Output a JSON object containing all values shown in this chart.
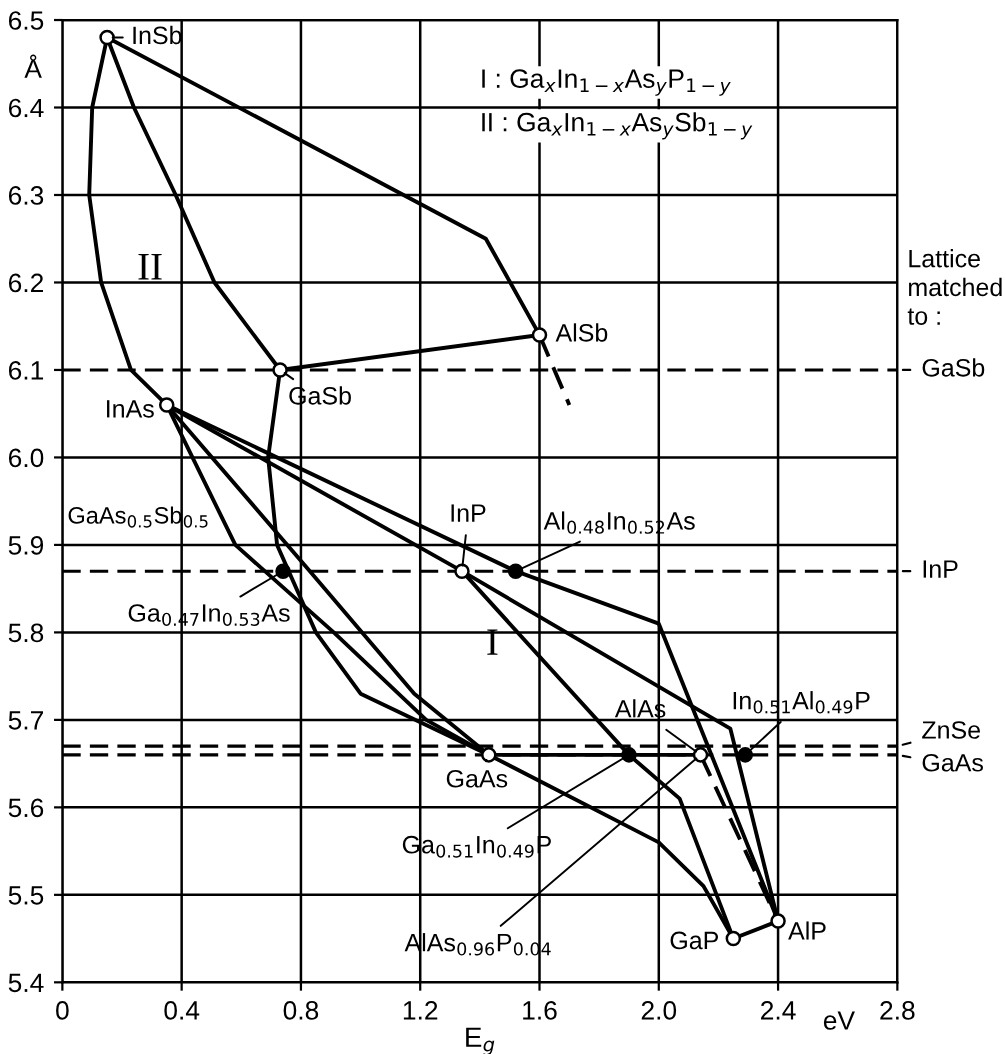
{
  "chart_data": {
    "type": "line",
    "xlabel": "E$_{g}$",
    "xlim": [
      0,
      2.8
    ],
    "ylim": [
      5.4,
      6.5
    ],
    "xticks": [
      0,
      0.4,
      0.8,
      1.2,
      1.6,
      {
        "value": 2,
        "label": "2.0"
      },
      2.4,
      2.8
    ],
    "yticks": [
      5.4,
      5.5,
      5.6,
      5.7,
      5.8,
      5.9,
      {
        "value": 6,
        "label": "6.0"
      },
      6.1,
      6.2,
      6.3,
      6.4,
      6.5
    ],
    "grid": true,
    "series": [
      {
        "color": "#000000",
        "line_style": "solid",
        "x": [
          0.15,
          1.42,
          1.6
        ],
        "values": [
          6.48,
          6.25,
          6.14
        ]
      },
      {
        "color": "#000000",
        "line_style": "dashed",
        "x": [
          1.6,
          1.7
        ],
        "values": [
          6.14,
          6.06
        ]
      },
      {
        "color": "#000000",
        "line_style": "solid",
        "x": [
          0.73,
          1.6
        ],
        "values": [
          6.1,
          6.14
        ]
      },
      {
        "color": "#000000",
        "line_style": "solid",
        "x": [
          0.15,
          0.1,
          0.09,
          0.13,
          0.23,
          0.35
        ],
        "values": [
          6.48,
          6.4,
          6.3,
          6.2,
          6.1,
          6.06
        ]
      },
      {
        "color": "#000000",
        "line_style": "solid",
        "x": [
          0.15,
          0.24,
          0.38,
          0.51,
          0.73
        ],
        "values": [
          6.48,
          6.4,
          6.3,
          6.2,
          6.1
        ]
      },
      {
        "color": "#000000",
        "line_style": "solid",
        "x": [
          0.73,
          0.69,
          0.72,
          0.85,
          1.0,
          1.43
        ],
        "values": [
          6.1,
          6.0,
          5.9,
          5.8,
          5.73,
          5.66
        ]
      },
      {
        "color": "#000000",
        "line_style": "solid",
        "x": [
          0.35,
          0.58,
          0.91,
          1.22,
          1.43
        ],
        "values": [
          6.06,
          5.9,
          5.8,
          5.7,
          5.66
        ]
      },
      {
        "color": "#000000",
        "line_style": "solid",
        "x": [
          0.35,
          0.83,
          1.18,
          1.43
        ],
        "values": [
          6.06,
          5.87,
          5.73,
          5.66
        ]
      },
      {
        "color": "#000000",
        "line_style": "solid",
        "x": [
          0.35,
          1.34,
          2.24,
          2.4
        ],
        "values": [
          6.06,
          5.87,
          5.69,
          5.47
        ]
      },
      {
        "color": "#000000",
        "line_style": "solid",
        "x": [
          0.35,
          1.52,
          2.0,
          2.4
        ],
        "values": [
          6.06,
          5.87,
          5.81,
          5.47
        ]
      },
      {
        "color": "#000000",
        "line_style": "solid",
        "x": [
          1.34,
          1.9,
          2.07,
          2.25
        ],
        "values": [
          5.87,
          5.66,
          5.61,
          5.45
        ]
      },
      {
        "color": "#000000",
        "line_style": "solid",
        "x": [
          1.43,
          2.0,
          2.15,
          2.25
        ],
        "values": [
          5.66,
          5.56,
          5.51,
          5.45
        ]
      },
      {
        "color": "#000000",
        "line_style": "solid",
        "x": [
          1.43,
          2.14
        ],
        "values": [
          5.66,
          5.66
        ]
      },
      {
        "color": "#000000",
        "line_style": "dashed",
        "x": [
          2.14,
          2.4
        ],
        "values": [
          5.66,
          5.47
        ]
      },
      {
        "color": "#000000",
        "line_style": "solid",
        "x": [
          2.25,
          2.4
        ],
        "values": [
          5.45,
          5.47
        ]
      },
      {
        "type": "scatter",
        "marker": "circle",
        "color": "#ffffff",
        "x": [
          0.15,
          0.73,
          0.35,
          1.6,
          1.34,
          1.43,
          2.14,
          2.25,
          2.4
        ],
        "values": [
          6.48,
          6.1,
          6.06,
          6.14,
          5.87,
          5.66,
          5.66,
          5.45,
          5.47
        ]
      },
      {
        "type": "scatter",
        "marker": "circle",
        "color": "#000000",
        "x": [
          1.52,
          0.74,
          1.9,
          2.29
        ],
        "values": [
          5.87,
          5.87,
          5.66,
          5.66
        ]
      }
    ],
    "ref_lines": [
      {
        "axis": "y",
        "value": 6.1,
        "label": "GaSb",
        "line_style": "dashed"
      },
      {
        "axis": "y",
        "value": 5.87,
        "label": "InP",
        "line_style": "dashed"
      },
      {
        "axis": "y",
        "value": 5.67,
        "label": "ZnSe",
        "line_style": "dashed"
      },
      {
        "axis": "y",
        "value": 5.66,
        "label": "GaAs",
        "line_style": "dashed"
      }
    ],
    "annotations": [
      "Å",
      "I : Ga$_{x}$In$_{1−x}$As$_{y}$P$_{1−y}$",
      "II : Ga$_{x}$In$_{1−x}$As$_{y}$Sb$_{1−y}$",
      "Lattice\nmatched\nto :",
      "eV",
      "GaAs$_{0.5}$Sb$_{0.5}$",
      "I",
      "II",
      {
        "text": "InSb",
        "x": 0.15,
        "y": 6.48
      },
      {
        "text": "GaSb",
        "x": 0.73,
        "y": 6.1
      },
      {
        "text": "InAs",
        "x": 0.35,
        "y": 6.06
      },
      {
        "text": "AlSb",
        "x": 1.6,
        "y": 6.14
      },
      {
        "text": "InP",
        "x": 1.34,
        "y": 5.87
      },
      {
        "text": "GaAs",
        "x": 1.43,
        "y": 5.66
      },
      {
        "text": "AlAs",
        "x": 2.14,
        "y": 5.66
      },
      {
        "text": "GaP",
        "x": 2.25,
        "y": 5.45
      },
      {
        "text": "AlP",
        "x": 2.4,
        "y": 5.47
      },
      {
        "text": "Al$_{0.48}$In$_{0.52}$As",
        "x": 1.52,
        "y": 5.87
      },
      {
        "text": "Ga$_{0.47}$In$_{0.53}$As",
        "x": 0.74,
        "y": 5.87
      },
      {
        "text": "Ga$_{0.51}$In$_{0.49}$P",
        "x": 1.9,
        "y": 5.66
      },
      {
        "text": "In$_{0.51}$Al$_{0.49}$P",
        "x": 2.29,
        "y": 5.66
      },
      {
        "text": "AlAs$_{0.96}$P$_{0.04}$",
        "x": 2.14,
        "y": 5.66
      }
    ]
  }
}
